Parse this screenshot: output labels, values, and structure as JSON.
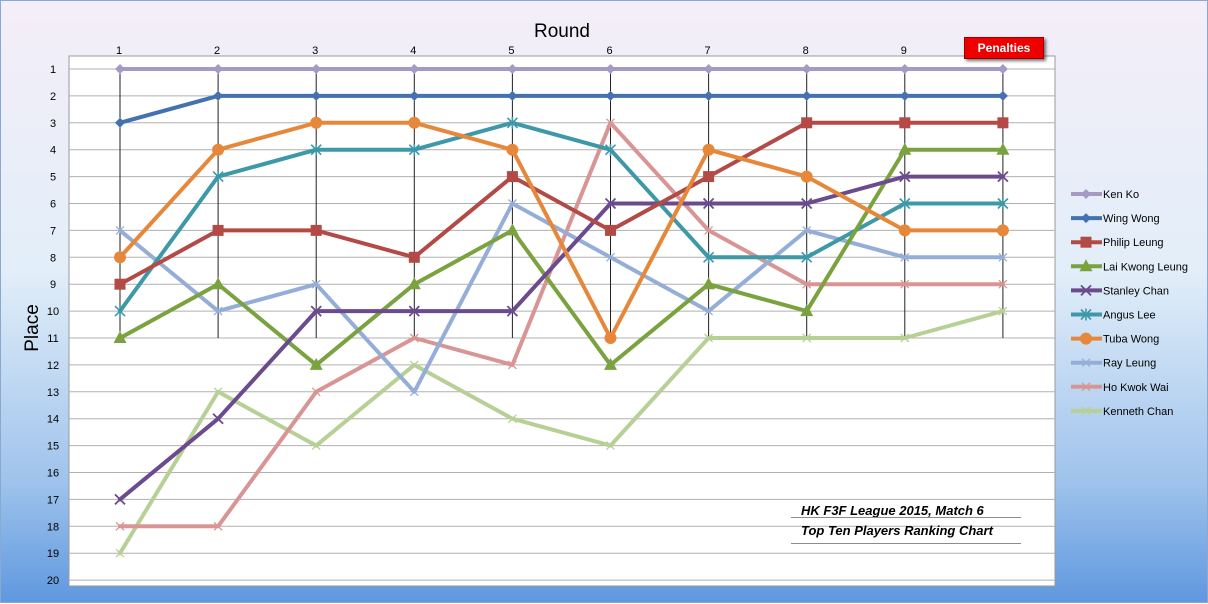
{
  "chart_data": {
    "type": "line",
    "title": "",
    "xlabel": "Round",
    "ylabel": "Place",
    "x": [
      "1",
      "2",
      "3",
      "4",
      "5",
      "6",
      "7",
      "8",
      "9",
      ""
    ],
    "y_ticks": [
      "1",
      "2",
      "3",
      "4",
      "5",
      "6",
      "7",
      "8",
      "9",
      "10",
      "11",
      "12",
      "13",
      "14",
      "15",
      "16",
      "17",
      "18",
      "19",
      "20"
    ],
    "ylim": [
      1,
      20
    ],
    "y_inverted": true,
    "grid": true,
    "legend_position": "right",
    "series": [
      {
        "name": "Ken Ko",
        "color": "#a59ac3",
        "marker": "diamond",
        "values": [
          1,
          1,
          1,
          1,
          1,
          1,
          1,
          1,
          1,
          1
        ]
      },
      {
        "name": "Wing Wong",
        "color": "#4472b0",
        "marker": "diamond",
        "values": [
          3,
          2,
          2,
          2,
          2,
          2,
          2,
          2,
          2,
          2
        ]
      },
      {
        "name": "Philip Leung",
        "color": "#b34a46",
        "marker": "square",
        "values": [
          9,
          7,
          7,
          8,
          5,
          7,
          5,
          3,
          3,
          3
        ]
      },
      {
        "name": "Lai Kwong Leung",
        "color": "#7aa23f",
        "marker": "triangle",
        "values": [
          11,
          9,
          12,
          9,
          7,
          12,
          9,
          10,
          4,
          4
        ]
      },
      {
        "name": "Stanley Chan",
        "color": "#6b4a8e",
        "marker": "x",
        "values": [
          17,
          14,
          10,
          10,
          10,
          6,
          6,
          6,
          5,
          5
        ]
      },
      {
        "name": "Angus Lee",
        "color": "#3d98a8",
        "marker": "star",
        "values": [
          10,
          5,
          4,
          4,
          3,
          4,
          8,
          8,
          6,
          6
        ]
      },
      {
        "name": "Tuba Wong",
        "color": "#e6873a",
        "marker": "circle",
        "values": [
          8,
          4,
          3,
          3,
          4,
          11,
          4,
          5,
          7,
          7
        ]
      },
      {
        "name": "Ray Leung",
        "color": "#95aed8",
        "marker": "none",
        "values": [
          7,
          10,
          9,
          13,
          6,
          8,
          10,
          7,
          8,
          8
        ]
      },
      {
        "name": "Ho Kwok Wai",
        "color": "#d89594",
        "marker": "none",
        "values": [
          18,
          18,
          13,
          11,
          12,
          3,
          7,
          9,
          9,
          9
        ]
      },
      {
        "name": "Kenneth Chan",
        "color": "#b7d095",
        "marker": "none",
        "values": [
          19,
          13,
          15,
          12,
          14,
          15,
          11,
          11,
          11,
          10
        ]
      }
    ],
    "annotations": [
      "HK F3F League 2015, Match 6",
      "Top Ten Players Ranking Chart"
    ],
    "penalties_label": "Penalties"
  }
}
